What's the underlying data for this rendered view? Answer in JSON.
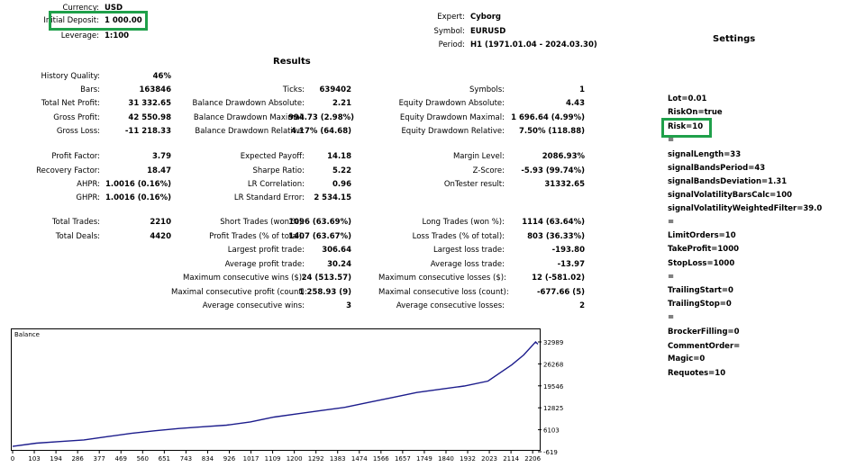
{
  "header_left": [
    {
      "label": "Currency:",
      "value": "USD"
    },
    {
      "label": "Initial Deposit:",
      "value": "1 000.00"
    },
    {
      "label": "Leverage:",
      "value": "1:100"
    }
  ],
  "header_mid": [
    {
      "label": "Expert:",
      "value": "Cyborg"
    },
    {
      "label": "Symbol:",
      "value": "EURUSD"
    },
    {
      "label": "Period:",
      "value": "H1 (1971.01.04 - 2024.03.30)"
    }
  ],
  "results_title": "Results",
  "settings_title": "Settings",
  "col1": [
    {
      "label": "History Quality:",
      "value": "46%"
    },
    {
      "label": "Bars:",
      "value": "163846"
    },
    {
      "label": "Total Net Profit:",
      "value": "31 332.65"
    },
    {
      "label": "Gross Profit:",
      "value": "42 550.98"
    },
    {
      "label": "Gross Loss:",
      "value": "-11 218.33"
    },
    {
      "label": "Profit Factor:",
      "value": "3.79"
    },
    {
      "label": "Recovery Factor:",
      "value": "18.47"
    },
    {
      "label": "AHPR:",
      "value": "1.0016 (0.16%)"
    },
    {
      "label": "GHPR:",
      "value": "1.0016 (0.16%)"
    },
    {
      "label": "Total Trades:",
      "value": "2210"
    },
    {
      "label": "Total Deals:",
      "value": "4420"
    }
  ],
  "col2": [
    {
      "label": "Ticks:",
      "value": "639402"
    },
    {
      "label": "Balance Drawdown Absolute:",
      "value": "2.21"
    },
    {
      "label": "Balance Drawdown Maximal:",
      "value": "994.73 (2.98%)"
    },
    {
      "label": "Balance Drawdown Relative:",
      "value": "4.17% (64.68)"
    },
    {
      "label": "Expected Payoff:",
      "value": "14.18"
    },
    {
      "label": "Sharpe Ratio:",
      "value": "5.22"
    },
    {
      "label": "LR Correlation:",
      "value": "0.96"
    },
    {
      "label": "LR Standard Error:",
      "value": "2 534.15"
    },
    {
      "label": "Short Trades (won %):",
      "value": "1096 (63.69%)"
    },
    {
      "label": "Profit Trades (% of total):",
      "value": "1407 (63.67%)"
    },
    {
      "label": "Largest profit trade:",
      "value": "306.64"
    },
    {
      "label": "Average profit trade:",
      "value": "30.24"
    },
    {
      "label": "Maximum consecutive wins ($):",
      "value": "24 (513.57)"
    },
    {
      "label": "Maximal consecutive profit (count):",
      "value": "1 258.93 (9)"
    },
    {
      "label": "Average consecutive wins:",
      "value": "3"
    }
  ],
  "col3": [
    {
      "label": "Symbols:",
      "value": "1"
    },
    {
      "label": "Equity Drawdown Absolute:",
      "value": "4.43"
    },
    {
      "label": "Equity Drawdown Maximal:",
      "value": "1 696.64 (4.99%)"
    },
    {
      "label": "Equity Drawdown Relative:",
      "value": "7.50% (118.88)"
    },
    {
      "label": "Margin Level:",
      "value": "2086.93%"
    },
    {
      "label": "Z-Score:",
      "value": "-5.93 (99.74%)"
    },
    {
      "label": "OnTester result:",
      "value": "31332.65"
    },
    {
      "label": "Long Trades (won %):",
      "value": "1114 (63.64%)"
    },
    {
      "label": "Loss Trades (% of total):",
      "value": "803 (36.33%)"
    },
    {
      "label": "Largest loss trade:",
      "value": "-193.80"
    },
    {
      "label": "Average loss trade:",
      "value": "-13.97"
    },
    {
      "label": "Maximum consecutive losses ($):",
      "value": "12 (-581.02)"
    },
    {
      "label": "Maximal consecutive loss (count):",
      "value": "-677.66 (5)"
    },
    {
      "label": "Average consecutive losses:",
      "value": "2"
    }
  ],
  "settings": [
    "Lot=0.01",
    "RiskOn=true",
    "Risk=10",
    "=",
    "signalLength=33",
    "signalBandsPeriod=43",
    "signalBandsDeviation=1.31",
    "signalVolatilityBarsCalc=100",
    "signalVolatilityWeightedFilter=39.0",
    "=",
    "LimitOrders=10",
    "TakeProfit=1000",
    "StopLoss=1000",
    "=",
    "TrailingStart=0",
    "TrailingStop=0",
    "=",
    "BrockerFilling=0",
    "CommentOrder=",
    "Magic=0",
    "Requotes=10"
  ],
  "colors": {
    "highlight": "#1fa04a",
    "balance_line": "#1c1c8c"
  },
  "chart_data": {
    "type": "line",
    "title": "Balance",
    "x_ticks": [
      "0",
      "103",
      "194",
      "286",
      "377",
      "469",
      "560",
      "651",
      "743",
      "834",
      "926",
      "1017",
      "1109",
      "1200",
      "1292",
      "1383",
      "1474",
      "1566",
      "1657",
      "1749",
      "1840",
      "1932",
      "2023",
      "2114",
      "2206"
    ],
    "y_ticks": [
      "32989",
      "26268",
      "19546",
      "12825",
      "6103",
      "-619"
    ],
    "xlim": [
      0,
      2210
    ],
    "ylim": [
      -619,
      32989
    ],
    "series": [
      {
        "x": [
          0,
          100,
          200,
          300,
          400,
          500,
          600,
          700,
          800,
          900,
          1000,
          1100,
          1200,
          1300,
          1400,
          1500,
          1600,
          1700,
          1800,
          1900,
          2000,
          2050,
          2100,
          2150,
          2200,
          2210
        ],
        "y": [
          1000,
          2000,
          2500,
          3000,
          4000,
          5000,
          5800,
          6500,
          7000,
          7500,
          8500,
          10000,
          11000,
          12000,
          13000,
          14500,
          16000,
          17500,
          18500,
          19500,
          21000,
          23500,
          26000,
          29000,
          32989,
          32300
        ]
      }
    ]
  }
}
